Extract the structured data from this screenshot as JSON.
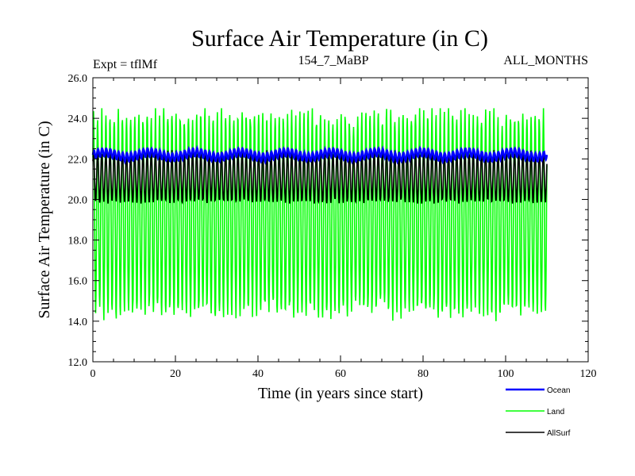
{
  "chart_data": {
    "type": "line",
    "title": "Surface Air Temperature (in C)",
    "subtitle_left": "Expt = tflMf",
    "subtitle_center": "154_7_MaBP",
    "subtitle_right": "ALL_MONTHS",
    "xlabel": "Time (in years since start)",
    "ylabel": "Surface Air Temperature (in C)",
    "xlim": [
      0,
      120
    ],
    "ylim": [
      12.0,
      26.0
    ],
    "x_ticks": [
      "0",
      "20",
      "40",
      "60",
      "80",
      "100",
      "120"
    ],
    "y_ticks": [
      "12.0",
      "14.0",
      "16.0",
      "18.0",
      "20.0",
      "22.0",
      "24.0",
      "26.0"
    ],
    "legend_position": "bottom-right",
    "x_range_data": [
      0,
      110
    ],
    "series": [
      {
        "name": "Ocean",
        "color": "#0000ff",
        "mean": 22.2,
        "amplitude": 0.35,
        "approx_range": [
          21.6,
          22.8
        ]
      },
      {
        "name": "Land",
        "color": "#00ff00",
        "mean": 19.3,
        "amplitude": 4.8,
        "approx_range": [
          14.0,
          24.5
        ]
      },
      {
        "name": "AllSurf",
        "color": "#000000",
        "mean": 21.1,
        "amplitude": 1.2,
        "approx_range": [
          19.8,
          22.5
        ]
      }
    ]
  }
}
